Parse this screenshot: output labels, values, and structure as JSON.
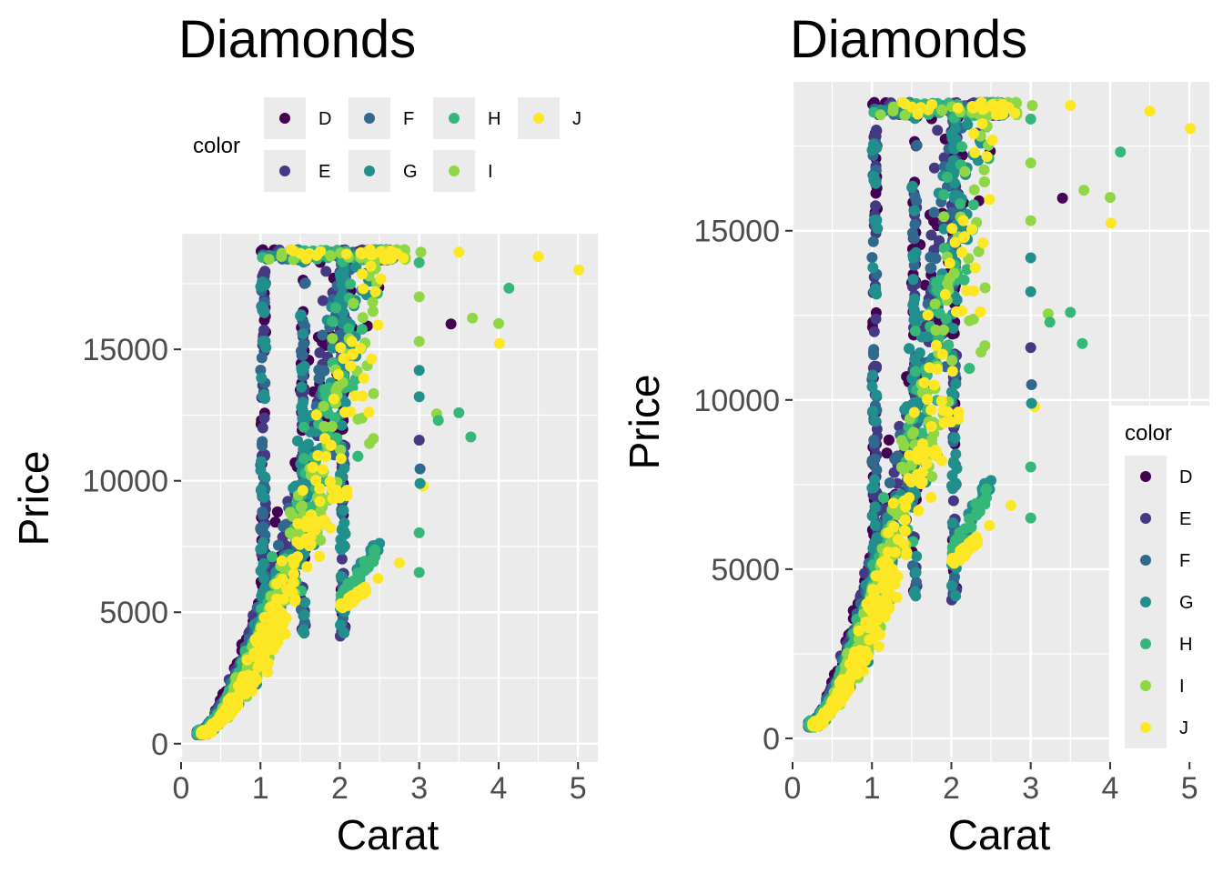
{
  "chart_data": [
    {
      "type": "scatter",
      "title": "Diamonds",
      "xlabel": "Carat",
      "ylabel": "Price",
      "xlim": [
        0,
        5.25
      ],
      "ylim": [
        -700,
        19400
      ],
      "x_ticks": [
        "0",
        "1",
        "2",
        "3",
        "4",
        "5"
      ],
      "y_ticks": [
        "0",
        "5000",
        "10000",
        "15000"
      ],
      "grid": true,
      "legend": {
        "title": "color",
        "placement": "top",
        "items": [
          {
            "label": "D",
            "color": "#440154"
          },
          {
            "label": "E",
            "color": "#443A83"
          },
          {
            "label": "F",
            "color": "#31688E"
          },
          {
            "label": "G",
            "color": "#21908C"
          },
          {
            "label": "H",
            "color": "#35B779"
          },
          {
            "label": "I",
            "color": "#8FD744"
          },
          {
            "label": "J",
            "color": "#FDE725"
          }
        ]
      },
      "outliers": [
        {
          "x": 3.4,
          "y": 15964,
          "color": "D"
        },
        {
          "x": 4.13,
          "y": 17329,
          "color": "H"
        },
        {
          "x": 3.65,
          "y": 11668,
          "color": "H"
        },
        {
          "x": 3.5,
          "y": 12587,
          "color": "H"
        },
        {
          "x": 3.67,
          "y": 16193,
          "color": "I"
        },
        {
          "x": 4.0,
          "y": 15984,
          "color": "I"
        },
        {
          "x": 3.22,
          "y": 12545,
          "color": "I"
        },
        {
          "x": 3.24,
          "y": 12300,
          "color": "H"
        },
        {
          "x": 3.5,
          "y": 18701,
          "color": "J"
        },
        {
          "x": 4.5,
          "y": 18531,
          "color": "J"
        },
        {
          "x": 5.01,
          "y": 18018,
          "color": "J"
        },
        {
          "x": 4.01,
          "y": 15223,
          "color": "J"
        },
        {
          "x": 3.05,
          "y": 9800,
          "color": "J"
        },
        {
          "x": 3.01,
          "y": 10453,
          "color": "F"
        },
        {
          "x": 3.01,
          "y": 9900,
          "color": "G"
        },
        {
          "x": 3.0,
          "y": 8020,
          "color": "H"
        },
        {
          "x": 3.0,
          "y": 6512,
          "color": "H"
        },
        {
          "x": 3.0,
          "y": 11548,
          "color": "E"
        },
        {
          "x": 3.0,
          "y": 13200,
          "color": "G"
        },
        {
          "x": 3.0,
          "y": 14200,
          "color": "G"
        },
        {
          "x": 3.0,
          "y": 15300,
          "color": "I"
        },
        {
          "x": 3.0,
          "y": 17000,
          "color": "I"
        },
        {
          "x": 3.0,
          "y": 18300,
          "color": "H"
        },
        {
          "x": 3.02,
          "y": 18700,
          "color": "I"
        },
        {
          "x": 2.75,
          "y": 6880,
          "color": "J"
        },
        {
          "x": 2.48,
          "y": 6289,
          "color": "J"
        }
      ]
    },
    {
      "type": "scatter",
      "title": "Diamonds",
      "xlabel": "Carat",
      "ylabel": "Price",
      "xlim": [
        0,
        5.25
      ],
      "ylim": [
        -700,
        19400
      ],
      "x_ticks": [
        "0",
        "1",
        "2",
        "3",
        "4",
        "5"
      ],
      "y_ticks": [
        "0",
        "5000",
        "10000",
        "15000"
      ],
      "grid": true,
      "legend": {
        "title": "color",
        "placement": "bottom-right",
        "items": [
          {
            "label": "D",
            "color": "#440154"
          },
          {
            "label": "E",
            "color": "#443A83"
          },
          {
            "label": "F",
            "color": "#31688E"
          },
          {
            "label": "G",
            "color": "#21908C"
          },
          {
            "label": "H",
            "color": "#35B779"
          },
          {
            "label": "I",
            "color": "#8FD744"
          },
          {
            "label": "J",
            "color": "#FDE725"
          }
        ]
      },
      "outliers": [
        {
          "x": 3.4,
          "y": 15964,
          "color": "D"
        },
        {
          "x": 4.13,
          "y": 17329,
          "color": "H"
        },
        {
          "x": 3.65,
          "y": 11668,
          "color": "H"
        },
        {
          "x": 3.5,
          "y": 12587,
          "color": "H"
        },
        {
          "x": 3.67,
          "y": 16193,
          "color": "I"
        },
        {
          "x": 4.0,
          "y": 15984,
          "color": "I"
        },
        {
          "x": 3.22,
          "y": 12545,
          "color": "I"
        },
        {
          "x": 3.24,
          "y": 12300,
          "color": "H"
        },
        {
          "x": 3.5,
          "y": 18701,
          "color": "J"
        },
        {
          "x": 4.5,
          "y": 18531,
          "color": "J"
        },
        {
          "x": 5.01,
          "y": 18018,
          "color": "J"
        },
        {
          "x": 4.01,
          "y": 15223,
          "color": "J"
        },
        {
          "x": 3.05,
          "y": 9800,
          "color": "J"
        },
        {
          "x": 3.01,
          "y": 10453,
          "color": "F"
        },
        {
          "x": 3.01,
          "y": 9900,
          "color": "G"
        },
        {
          "x": 3.0,
          "y": 8020,
          "color": "H"
        },
        {
          "x": 3.0,
          "y": 6512,
          "color": "H"
        },
        {
          "x": 3.0,
          "y": 11548,
          "color": "E"
        },
        {
          "x": 3.0,
          "y": 13200,
          "color": "G"
        },
        {
          "x": 3.0,
          "y": 14200,
          "color": "G"
        },
        {
          "x": 3.0,
          "y": 15300,
          "color": "I"
        },
        {
          "x": 3.0,
          "y": 17000,
          "color": "I"
        },
        {
          "x": 3.0,
          "y": 18300,
          "color": "H"
        },
        {
          "x": 3.02,
          "y": 18700,
          "color": "I"
        },
        {
          "x": 2.75,
          "y": 6880,
          "color": "J"
        },
        {
          "x": 2.48,
          "y": 6289,
          "color": "J"
        }
      ]
    }
  ]
}
